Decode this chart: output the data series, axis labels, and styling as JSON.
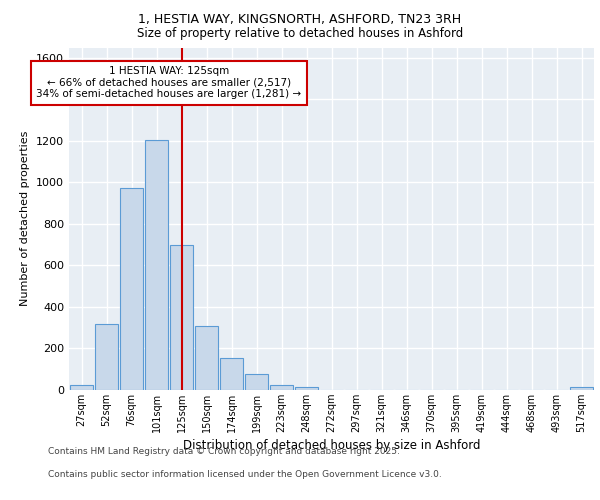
{
  "title_line1": "1, HESTIA WAY, KINGSNORTH, ASHFORD, TN23 3RH",
  "title_line2": "Size of property relative to detached houses in Ashford",
  "xlabel": "Distribution of detached houses by size in Ashford",
  "ylabel": "Number of detached properties",
  "categories": [
    "27sqm",
    "52sqm",
    "76sqm",
    "101sqm",
    "125sqm",
    "150sqm",
    "174sqm",
    "199sqm",
    "223sqm",
    "248sqm",
    "272sqm",
    "297sqm",
    "321sqm",
    "346sqm",
    "370sqm",
    "395sqm",
    "419sqm",
    "444sqm",
    "468sqm",
    "493sqm",
    "517sqm"
  ],
  "values": [
    25,
    320,
    975,
    1205,
    700,
    310,
    155,
    75,
    25,
    15,
    0,
    0,
    0,
    0,
    0,
    0,
    0,
    0,
    0,
    0,
    15
  ],
  "bar_color": "#c8d8ea",
  "bar_edge_color": "#5b9bd5",
  "vline_color": "#cc0000",
  "annotation_text_line1": "1 HESTIA WAY: 125sqm",
  "annotation_text_line2": "← 66% of detached houses are smaller (2,517)",
  "annotation_text_line3": "34% of semi-detached houses are larger (1,281) →",
  "ylim": [
    0,
    1650
  ],
  "yticks": [
    0,
    200,
    400,
    600,
    800,
    1000,
    1200,
    1400,
    1600
  ],
  "footer_line1": "Contains HM Land Registry data © Crown copyright and database right 2025.",
  "footer_line2": "Contains public sector information licensed under the Open Government Licence v3.0.",
  "background_color": "#e8eef4",
  "grid_color": "#ffffff",
  "fig_bg_color": "#ffffff"
}
